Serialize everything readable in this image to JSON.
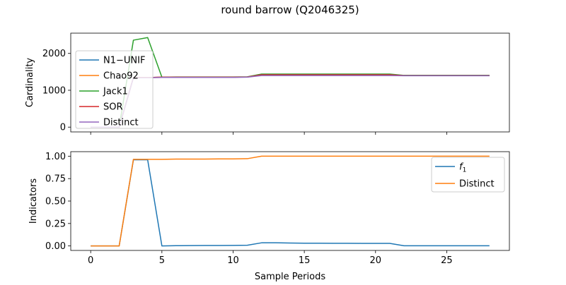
{
  "figure": {
    "title": "round barrow (Q2046325)"
  },
  "chart_data": [
    {
      "type": "line",
      "ylabel": "Cardinality",
      "xlabel": "",
      "xlim": [
        -1.4,
        29.4
      ],
      "ylim": [
        -130,
        2550
      ],
      "xticks": [
        0,
        5,
        10,
        15,
        20,
        25
      ],
      "show_xtick_labels": false,
      "yticks": [
        0,
        1000,
        2000
      ],
      "ytick_labels": [
        "0",
        "1000",
        "2000"
      ],
      "grid": false,
      "legend_position": "center-left",
      "x": [
        0,
        1,
        2,
        3,
        4,
        5,
        6,
        7,
        8,
        9,
        10,
        11,
        12,
        13,
        14,
        15,
        16,
        17,
        18,
        19,
        20,
        21,
        22,
        23,
        24,
        25,
        26,
        27,
        28
      ],
      "series": [
        {
          "name": "N1−UNIF",
          "color": "#1f77b4",
          "values": [
            0,
            0,
            0,
            1345,
            1345,
            1355,
            1355,
            1355,
            1355,
            1355,
            1355,
            1360,
            1420,
            1420,
            1420,
            1420,
            1420,
            1420,
            1420,
            1420,
            1420,
            1420,
            1400,
            1400,
            1400,
            1400,
            1400,
            1400,
            1400
          ]
        },
        {
          "name": "Chao92",
          "color": "#ff7f0e",
          "values": [
            0,
            0,
            0,
            1345,
            1345,
            1355,
            1355,
            1355,
            1355,
            1355,
            1355,
            1360,
            1420,
            1420,
            1420,
            1420,
            1420,
            1420,
            1420,
            1420,
            1420,
            1420,
            1400,
            1400,
            1400,
            1400,
            1400,
            1400,
            1400
          ]
        },
        {
          "name": "Jack1",
          "color": "#2ca02c",
          "values": [
            0,
            0,
            0,
            2360,
            2430,
            1355,
            1360,
            1360,
            1360,
            1360,
            1360,
            1365,
            1440,
            1440,
            1440,
            1440,
            1440,
            1440,
            1440,
            1440,
            1440,
            1440,
            1405,
            1405,
            1405,
            1405,
            1405,
            1405,
            1405
          ]
        },
        {
          "name": "SOR",
          "color": "#d62728",
          "values": [
            0,
            0,
            0,
            1345,
            1345,
            1355,
            1355,
            1355,
            1355,
            1355,
            1355,
            1360,
            1420,
            1420,
            1420,
            1420,
            1420,
            1420,
            1420,
            1420,
            1420,
            1420,
            1400,
            1400,
            1400,
            1400,
            1400,
            1400,
            1400
          ]
        },
        {
          "name": "Distinct",
          "color": "#9467bd",
          "values": [
            0,
            0,
            0,
            1340,
            1340,
            1350,
            1350,
            1350,
            1350,
            1350,
            1350,
            1355,
            1400,
            1400,
            1400,
            1400,
            1400,
            1400,
            1400,
            1400,
            1400,
            1400,
            1395,
            1395,
            1395,
            1395,
            1395,
            1395,
            1395
          ]
        }
      ]
    },
    {
      "type": "line",
      "ylabel": "Indicators",
      "xlabel": "Sample Periods",
      "xlim": [
        -1.4,
        29.4
      ],
      "ylim": [
        -0.05,
        1.05
      ],
      "xticks": [
        0,
        5,
        10,
        15,
        20,
        25
      ],
      "xtick_labels": [
        "0",
        "5",
        "10",
        "15",
        "20",
        "25"
      ],
      "show_xtick_labels": true,
      "yticks": [
        0.0,
        0.25,
        0.5,
        0.75,
        1.0
      ],
      "ytick_labels": [
        "0.00",
        "0.25",
        "0.50",
        "0.75",
        "1.00"
      ],
      "grid": false,
      "legend_position": "upper-right",
      "x": [
        0,
        1,
        2,
        3,
        4,
        5,
        6,
        7,
        8,
        9,
        10,
        11,
        12,
        13,
        14,
        15,
        16,
        17,
        18,
        19,
        20,
        21,
        22,
        23,
        24,
        25,
        26,
        27,
        28
      ],
      "series": [
        {
          "name": "f1",
          "name_main": "f",
          "name_sub": "1",
          "color": "#1f77b4",
          "values": [
            0,
            0,
            0,
            0.96,
            0.96,
            0.0,
            0.003,
            0.004,
            0.005,
            0.005,
            0.006,
            0.008,
            0.035,
            0.035,
            0.032,
            0.031,
            0.031,
            0.03,
            0.03,
            0.029,
            0.029,
            0.029,
            0.002,
            0.002,
            0.002,
            0.002,
            0.002,
            0.002,
            0.002
          ]
        },
        {
          "name": "Distinct",
          "color": "#ff7f0e",
          "values": [
            0,
            0,
            0,
            0.965,
            0.965,
            0.965,
            0.967,
            0.968,
            0.968,
            0.969,
            0.969,
            0.972,
            1.0,
            1.0,
            1.0,
            1.0,
            1.0,
            1.0,
            1.0,
            1.0,
            1.0,
            1.0,
            1.0,
            1.0,
            1.0,
            1.0,
            1.0,
            1.0,
            1.0
          ]
        }
      ]
    }
  ]
}
